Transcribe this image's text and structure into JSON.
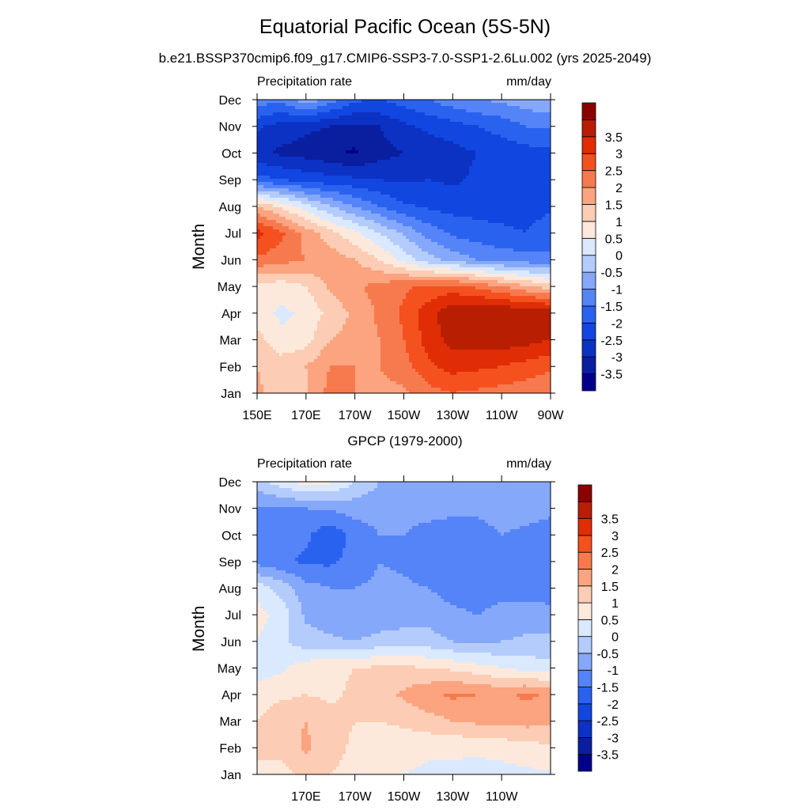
{
  "title": "Equatorial Pacific Ocean (5S-5N)",
  "subtitle": "b.e21.BSSP370cmip6.f09_g17.CMIP6-SSP3-7.0-SSP1-2.6Lu.002 (yrs 2025-2049)",
  "colors": {
    "palette": [
      "#00008b",
      "#0a1ea0",
      "#0c32c4",
      "#1147e0",
      "#2a62f0",
      "#5484f7",
      "#86a8fa",
      "#b4ccfc",
      "#dbe9fe",
      "#fde9dc",
      "#fdccb4",
      "#fba47f",
      "#f77a4e",
      "#f4511e",
      "#e02d06",
      "#b81e02",
      "#8b0000"
    ]
  },
  "chart_data": [
    {
      "type": "heatmap",
      "panel_title": "",
      "left_label": "Precipitation rate",
      "right_label": "mm/day",
      "ylabel": "Month",
      "xlabel": "",
      "x_ticks": [
        "150E",
        "170E",
        "170W",
        "150W",
        "130W",
        "110W",
        "90W"
      ],
      "x_tick_values": [
        150,
        170,
        190,
        210,
        230,
        250,
        270
      ],
      "xlim": [
        150,
        270
      ],
      "y_ticks": [
        "Jan",
        "Feb",
        "Mar",
        "Apr",
        "May",
        "Jun",
        "Jul",
        "Aug",
        "Sep",
        "Oct",
        "Nov",
        "Dec"
      ],
      "levels": [
        "-3.5",
        "-3",
        "-2.5",
        "-2",
        "-1.5",
        "-1",
        "-0.5",
        "0",
        "0.5",
        "1",
        "1.5",
        "2",
        "2.5",
        "3",
        "3.5"
      ],
      "x": [
        150,
        160,
        170,
        180,
        190,
        200,
        210,
        220,
        230,
        240,
        250,
        260,
        270
      ],
      "values": [
        [
          1.6,
          1.2,
          1.4,
          2.2,
          2.0,
          1.8,
          1.9,
          2.3,
          2.5,
          2.4,
          2.3,
          2.2,
          2.0
        ],
        [
          1.5,
          1.3,
          1.5,
          2.0,
          2.0,
          2.0,
          2.3,
          2.9,
          3.2,
          3.1,
          3.0,
          2.8,
          2.6
        ],
        [
          1.2,
          0.6,
          0.8,
          1.5,
          1.7,
          2.0,
          2.5,
          3.2,
          3.7,
          3.8,
          3.8,
          3.7,
          3.5
        ],
        [
          0.7,
          0.4,
          0.6,
          1.2,
          1.6,
          2.1,
          2.6,
          3.3,
          3.9,
          4.0,
          4.0,
          4.0,
          3.9
        ],
        [
          0.8,
          0.7,
          1.0,
          1.6,
          1.9,
          2.2,
          2.4,
          2.6,
          2.7,
          2.4,
          2.0,
          1.6,
          1.2
        ],
        [
          2.4,
          2.2,
          2.0,
          1.8,
          1.5,
          1.0,
          0.3,
          -0.3,
          -0.7,
          -1.0,
          -1.2,
          -1.3,
          -1.4
        ],
        [
          3.2,
          2.6,
          1.8,
          1.2,
          0.6,
          0.0,
          -0.6,
          -1.2,
          -1.6,
          -1.8,
          -1.9,
          -2.0,
          -1.7
        ],
        [
          1.5,
          0.9,
          0.2,
          -0.5,
          -1.0,
          -1.5,
          -1.9,
          -2.1,
          -2.2,
          -2.2,
          -2.2,
          -2.2,
          -2.1
        ],
        [
          -1.8,
          -2.0,
          -2.2,
          -2.3,
          -2.4,
          -2.5,
          -2.6,
          -2.5,
          -2.6,
          -2.4,
          -2.3,
          -2.2,
          -2.2
        ],
        [
          -2.9,
          -3.1,
          -3.2,
          -3.4,
          -3.6,
          -3.2,
          -3.0,
          -2.8,
          -2.7,
          -2.5,
          -2.3,
          -2.2,
          -2.2
        ],
        [
          -2.4,
          -2.7,
          -2.9,
          -3.0,
          -3.1,
          -3.0,
          -2.6,
          -2.4,
          -2.2,
          -2.0,
          -1.8,
          -1.5,
          -1.4
        ],
        [
          -1.2,
          -1.4,
          -0.6,
          -1.3,
          -1.9,
          -2.0,
          -1.8,
          -1.5,
          -1.2,
          -1.0,
          -0.9,
          -0.7,
          -0.6
        ]
      ]
    },
    {
      "type": "heatmap",
      "panel_title": "GPCP (1979-2000)",
      "left_label": "Precipitation rate",
      "right_label": "mm/day",
      "ylabel": "Month",
      "xlabel": "",
      "x_ticks": [
        "170E",
        "170W",
        "150W",
        "130W",
        "110W"
      ],
      "x_tick_values": [
        170,
        190,
        210,
        230,
        250
      ],
      "xlim": [
        150,
        270
      ],
      "y_ticks": [
        "Jan",
        "Feb",
        "Mar",
        "Apr",
        "May",
        "Jun",
        "Jul",
        "Aug",
        "Sep",
        "Oct",
        "Nov",
        "Dec"
      ],
      "levels": [
        "-3.5",
        "-3",
        "-2.5",
        "-2",
        "-1.5",
        "-1",
        "-0.5",
        "0",
        "0.5",
        "1",
        "1.5",
        "2",
        "2.5",
        "3",
        "3.5"
      ],
      "x": [
        150,
        160,
        170,
        180,
        190,
        200,
        210,
        220,
        230,
        240,
        250,
        260,
        270
      ],
      "values": [
        [
          0.9,
          0.8,
          1.2,
          1.0,
          0.8,
          0.6,
          0.5,
          0.4,
          0.4,
          0.3,
          0.3,
          0.4,
          0.4
        ],
        [
          1.1,
          1.2,
          1.6,
          1.2,
          0.9,
          0.8,
          0.7,
          0.6,
          0.6,
          0.6,
          0.7,
          0.8,
          0.9
        ],
        [
          1.0,
          1.3,
          1.5,
          1.2,
          1.0,
          1.0,
          1.1,
          1.3,
          1.5,
          1.6,
          1.6,
          1.7,
          1.6
        ],
        [
          0.8,
          0.9,
          1.0,
          0.9,
          1.1,
          1.3,
          1.6,
          1.9,
          2.1,
          2.0,
          1.9,
          2.1,
          1.9
        ],
        [
          0.2,
          0.4,
          0.8,
          0.9,
          1.0,
          1.1,
          1.1,
          1.0,
          0.9,
          0.7,
          0.5,
          0.3,
          0.2
        ],
        [
          0.5,
          0.1,
          -0.3,
          -0.4,
          -0.5,
          -0.3,
          -0.2,
          -0.3,
          -0.5,
          -0.6,
          -0.5,
          -0.4,
          -0.4
        ],
        [
          0.7,
          0.3,
          -0.6,
          -0.8,
          -0.9,
          -0.9,
          -0.8,
          -0.7,
          -0.9,
          -1.0,
          -0.9,
          -0.8,
          -0.8
        ],
        [
          0.3,
          -0.2,
          -0.8,
          -1.0,
          -1.0,
          -0.9,
          -0.9,
          -1.0,
          -1.2,
          -1.2,
          -1.1,
          -1.2,
          -1.3
        ],
        [
          -1.2,
          -1.4,
          -1.6,
          -1.6,
          -1.3,
          -1.0,
          -1.1,
          -1.3,
          -1.4,
          -1.3,
          -1.1,
          -1.3,
          -1.4
        ],
        [
          -1.3,
          -1.2,
          -1.4,
          -1.9,
          -1.3,
          -1.0,
          -1.0,
          -1.2,
          -1.4,
          -1.2,
          -1.0,
          -1.1,
          -1.2
        ],
        [
          -1.1,
          -1.1,
          -1.0,
          -0.9,
          -0.8,
          -0.8,
          -0.8,
          -0.8,
          -0.8,
          -0.9,
          -0.8,
          -0.8,
          -0.9
        ],
        [
          -0.2,
          0.3,
          0.7,
          0.6,
          0.0,
          -0.5,
          -0.6,
          -0.6,
          -0.7,
          -0.7,
          -0.6,
          -0.6,
          -0.6
        ]
      ]
    }
  ]
}
